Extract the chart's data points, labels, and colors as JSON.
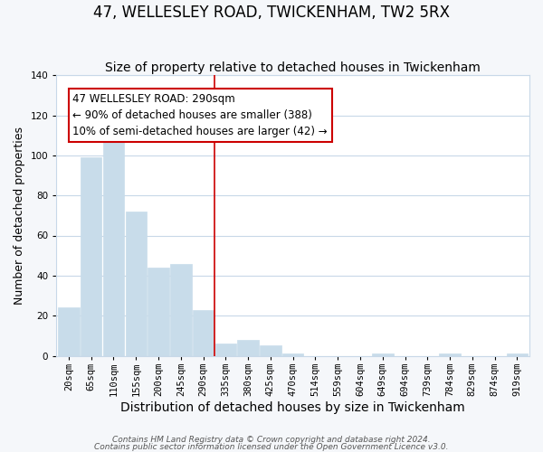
{
  "title": "47, WELLESLEY ROAD, TWICKENHAM, TW2 5RX",
  "subtitle": "Size of property relative to detached houses in Twickenham",
  "xlabel": "Distribution of detached houses by size in Twickenham",
  "ylabel": "Number of detached properties",
  "bar_labels": [
    "20sqm",
    "65sqm",
    "110sqm",
    "155sqm",
    "200sqm",
    "245sqm",
    "290sqm",
    "335sqm",
    "380sqm",
    "425sqm",
    "470sqm",
    "514sqm",
    "559sqm",
    "604sqm",
    "649sqm",
    "694sqm",
    "739sqm",
    "784sqm",
    "829sqm",
    "874sqm",
    "919sqm"
  ],
  "bar_values": [
    24,
    99,
    107,
    72,
    44,
    46,
    23,
    6,
    8,
    5,
    1,
    0,
    0,
    0,
    1,
    0,
    0,
    1,
    0,
    0,
    1
  ],
  "bar_color": "#c8dcea",
  "reference_line_x": 6.5,
  "reference_line_color": "#cc0000",
  "ylim": [
    0,
    140
  ],
  "annotation_text_line1": "47 WELLESLEY ROAD: 290sqm",
  "annotation_text_line2": "← 90% of detached houses are smaller (388)",
  "annotation_text_line3": "10% of semi-detached houses are larger (42) →",
  "annotation_box_edge_color": "#cc0000",
  "annotation_box_face_color": "#ffffff",
  "footer_line1": "Contains HM Land Registry data © Crown copyright and database right 2024.",
  "footer_line2": "Contains public sector information licensed under the Open Government Licence v3.0.",
  "background_color": "#f5f7fa",
  "plot_background_color": "#ffffff",
  "grid_color": "#c8d8e8",
  "title_fontsize": 12,
  "subtitle_fontsize": 10,
  "xlabel_fontsize": 10,
  "ylabel_fontsize": 9,
  "tick_fontsize": 7.5,
  "annotation_fontsize": 8.5,
  "footer_fontsize": 6.5
}
